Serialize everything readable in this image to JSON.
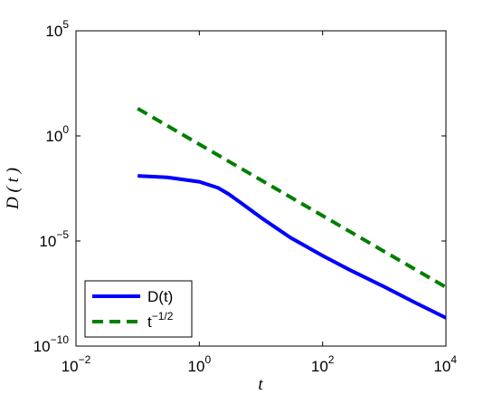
{
  "chart_data": {
    "type": "line",
    "title": "",
    "xlabel": "t",
    "ylabel": "D ( t )",
    "xscale": "log",
    "yscale": "log",
    "xlim": [
      0.01,
      10000
    ],
    "ylim": [
      1e-10,
      100000
    ],
    "grid": false,
    "legend_position": "bottom-left",
    "x_ticks": [
      {
        "base": "10",
        "exp": "−2",
        "value": 0.01
      },
      {
        "base": "10",
        "exp": "0",
        "value": 1
      },
      {
        "base": "10",
        "exp": "2",
        "value": 100
      },
      {
        "base": "10",
        "exp": "4",
        "value": 10000
      }
    ],
    "y_ticks": [
      {
        "base": "10",
        "exp": "−10",
        "value": 1e-10
      },
      {
        "base": "10",
        "exp": "−5",
        "value": 1e-05
      },
      {
        "base": "10",
        "exp": "0",
        "value": 1
      },
      {
        "base": "10",
        "exp": "5",
        "value": 100000
      }
    ],
    "series": [
      {
        "name": "D(t)",
        "legend_base": "D(t)",
        "legend_exp": "",
        "color": "#0000ff",
        "style": "solid",
        "x": [
          0.1,
          0.3,
          1,
          2,
          3,
          5,
          10,
          30,
          100,
          300,
          1000,
          3000,
          10000
        ],
        "y": [
          0.0126,
          0.0107,
          0.0066,
          0.0034,
          0.0017,
          0.00058,
          0.00013,
          1.45e-05,
          2e-06,
          3.7e-07,
          6.6e-08,
          1.26e-08,
          2.2e-09
        ]
      },
      {
        "name": "t^{-1/2}",
        "legend_base": "t",
        "legend_exp": "−1/2",
        "color": "#007f00",
        "style": "dashed",
        "x": [
          0.1,
          10000
        ],
        "y": [
          20,
          6.3e-08
        ]
      }
    ]
  }
}
